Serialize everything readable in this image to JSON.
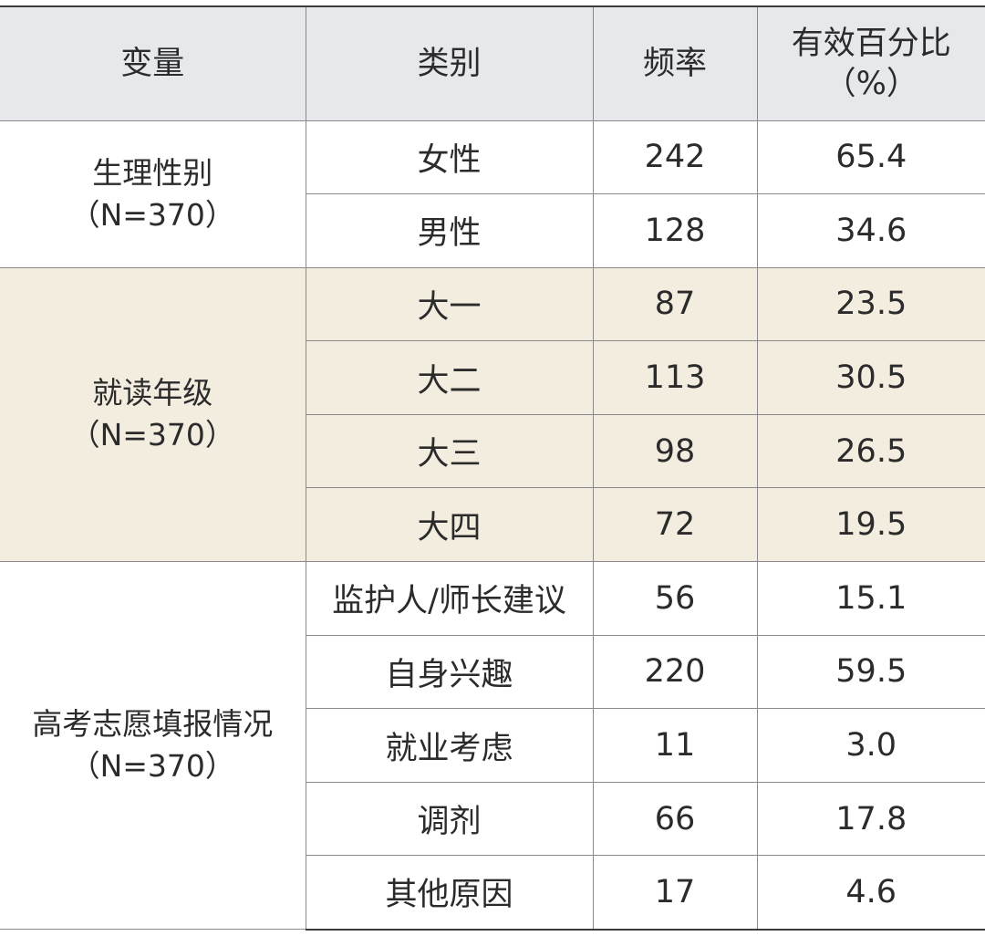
{
  "headers": {
    "variable": "变量",
    "category": "类别",
    "frequency": "频率",
    "percent_line1": "有效百分比",
    "percent_line2": "（%）"
  },
  "groups": [
    {
      "variable": "生理性别",
      "n": "（N=370）",
      "rows": [
        {
          "category": "女性",
          "frequency": "242",
          "percent": "65.4"
        },
        {
          "category": "男性",
          "frequency": "128",
          "percent": "34.6"
        }
      ]
    },
    {
      "variable": "就读年级",
      "n": "（N=370）",
      "rows": [
        {
          "category": "大一",
          "frequency": "87",
          "percent": "23.5"
        },
        {
          "category": "大二",
          "frequency": "113",
          "percent": "30.5"
        },
        {
          "category": "大三",
          "frequency": "98",
          "percent": "26.5"
        },
        {
          "category": "大四",
          "frequency": "72",
          "percent": "19.5"
        }
      ]
    },
    {
      "variable": "高考志愿填报情况",
      "n": "（N=370）",
      "rows": [
        {
          "category": "监护人/师长建议",
          "frequency": "56",
          "percent": "15.1"
        },
        {
          "category": "自身兴趣",
          "frequency": "220",
          "percent": "59.5"
        },
        {
          "category": "就业考虑",
          "frequency": "11",
          "percent": "3.0"
        },
        {
          "category": "调剂",
          "frequency": "66",
          "percent": "17.8"
        },
        {
          "category": "其他原因",
          "frequency": "17",
          "percent": "4.6"
        }
      ]
    }
  ]
}
